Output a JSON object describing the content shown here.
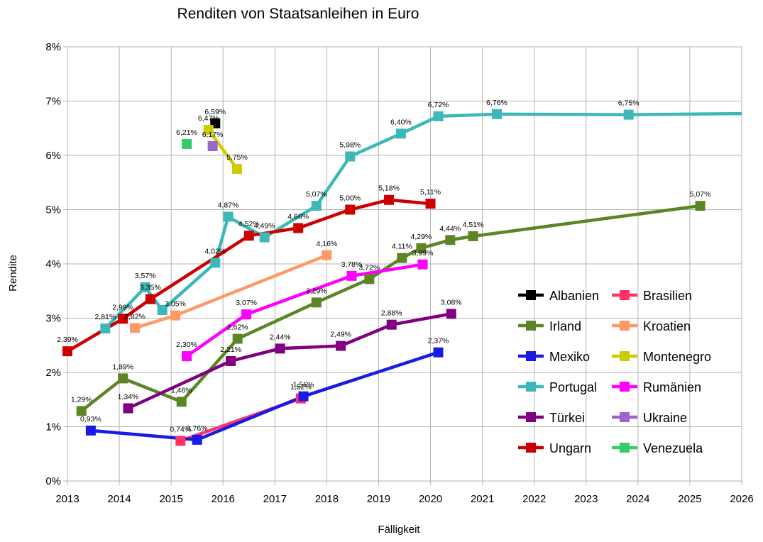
{
  "chart_data": {
    "type": "line",
    "title": "Renditen von Staatsanleihen in Euro",
    "xlabel": "Fälligkeit",
    "ylabel": "Rendite",
    "xlim": [
      2013,
      2026
    ],
    "ylim": [
      0,
      8
    ],
    "x_ticks": [
      "2013",
      "2014",
      "2015",
      "2016",
      "2017",
      "2018",
      "2019",
      "2020",
      "2021",
      "2022",
      "2023",
      "2024",
      "2025",
      "2026"
    ],
    "y_ticks": [
      "0%",
      "1%",
      "2%",
      "3%",
      "4%",
      "5%",
      "6%",
      "7%",
      "8%"
    ],
    "grid": true,
    "legend_position": "bottom-right",
    "series": [
      {
        "name": "Albanien",
        "color": "#000000",
        "points": [
          [
            2015.85,
            6.59,
            "6,59%"
          ]
        ]
      },
      {
        "name": "Brasilien",
        "color": "#ff3366",
        "points": [
          [
            2015.18,
            0.74,
            "0,74%"
          ],
          [
            2017.5,
            1.52,
            "1,52%"
          ]
        ]
      },
      {
        "name": "Irland",
        "color": "#5c8526",
        "points": [
          [
            2013.27,
            1.29,
            "1,29%"
          ],
          [
            2014.07,
            1.89,
            "1,89%"
          ],
          [
            2015.2,
            1.46,
            "1,46%"
          ],
          [
            2016.28,
            2.62,
            "2,62%"
          ],
          [
            2017.8,
            3.29,
            "3,29%"
          ],
          [
            2018.82,
            3.72,
            "3,72%"
          ],
          [
            2019.45,
            4.11,
            "4,11%"
          ],
          [
            2019.82,
            4.29,
            "4,29%"
          ],
          [
            2020.38,
            4.44,
            "4,44%"
          ],
          [
            2020.82,
            4.51,
            "4,51%"
          ],
          [
            2025.2,
            5.07,
            "5,07%"
          ]
        ]
      },
      {
        "name": "Kroatien",
        "color": "#ff9966",
        "points": [
          [
            2014.3,
            2.82,
            "2,82%"
          ],
          [
            2015.08,
            3.05,
            "3,05%"
          ],
          [
            2018.0,
            4.16,
            "4,16%"
          ]
        ]
      },
      {
        "name": "Mexiko",
        "color": "#1a1ae6",
        "points": [
          [
            2013.45,
            0.93,
            "0,93%"
          ],
          [
            2015.5,
            0.76,
            "0,76%"
          ],
          [
            2017.55,
            1.56,
            "1,56%"
          ],
          [
            2020.15,
            2.37,
            "2,37%"
          ]
        ]
      },
      {
        "name": "Montenegro",
        "color": "#cccc00",
        "points": [
          [
            2015.72,
            6.47,
            "6,47%"
          ],
          [
            2016.27,
            5.75,
            "5,75%"
          ]
        ]
      },
      {
        "name": "Portugal",
        "color": "#3cb8b8",
        "points": [
          [
            2013.73,
            2.81,
            "2,81%"
          ],
          [
            2014.5,
            3.57,
            "3,57%"
          ],
          [
            2014.83,
            3.15,
            ""
          ],
          [
            2015.85,
            4.02,
            "4,02%"
          ],
          [
            2016.1,
            4.87,
            "4,87%"
          ],
          [
            2016.8,
            4.49,
            "4,49%"
          ],
          [
            2017.8,
            5.07,
            "5,07%"
          ],
          [
            2018.45,
            5.98,
            "5,98%"
          ],
          [
            2019.43,
            6.4,
            "6,40%"
          ],
          [
            2020.15,
            6.72,
            "6,72%"
          ],
          [
            2021.28,
            6.76,
            "6,76%"
          ],
          [
            2023.82,
            6.75,
            "6,75%"
          ],
          [
            2026.0,
            6.77,
            ""
          ]
        ]
      },
      {
        "name": "Rumänien",
        "color": "#ff00ff",
        "points": [
          [
            2015.3,
            2.3,
            "2,30%"
          ],
          [
            2016.45,
            3.07,
            "3,07%"
          ],
          [
            2018.48,
            3.78,
            "3,78%"
          ],
          [
            2019.85,
            3.99,
            "3,99%"
          ]
        ]
      },
      {
        "name": "Türkei",
        "color": "#800080",
        "points": [
          [
            2014.17,
            1.34,
            "1,34%"
          ],
          [
            2016.15,
            2.21,
            "2,21%"
          ],
          [
            2017.1,
            2.44,
            "2,44%"
          ],
          [
            2018.27,
            2.49,
            "2,49%"
          ],
          [
            2019.25,
            2.88,
            "2,88%"
          ],
          [
            2020.4,
            3.08,
            "3,08%"
          ]
        ]
      },
      {
        "name": "Ukraine",
        "color": "#9966cc",
        "points": [
          [
            2015.8,
            6.17,
            "6,17%"
          ]
        ]
      },
      {
        "name": "Ungarn",
        "color": "#cc0000",
        "points": [
          [
            2013.0,
            2.39,
            "2,39%"
          ],
          [
            2014.07,
            2.99,
            "2,99%"
          ],
          [
            2014.6,
            3.35,
            "3,35%"
          ],
          [
            2016.5,
            4.52,
            "4,52%"
          ],
          [
            2017.45,
            4.66,
            "4,66%"
          ],
          [
            2018.45,
            5.0,
            "5,00%"
          ],
          [
            2019.2,
            5.18,
            "5,18%"
          ],
          [
            2020.0,
            5.11,
            "5,11%"
          ]
        ]
      },
      {
        "name": "Venezuela",
        "color": "#33cc66",
        "points": [
          [
            2015.3,
            6.21,
            "6,21%"
          ]
        ]
      }
    ]
  }
}
